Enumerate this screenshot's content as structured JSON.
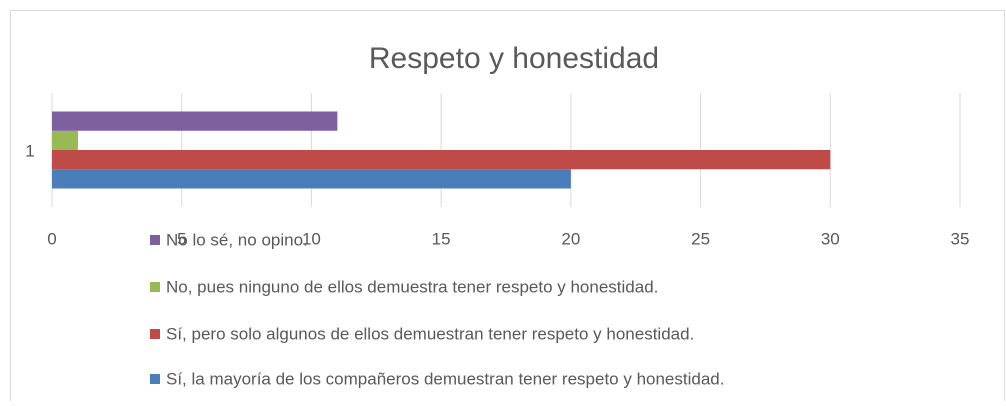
{
  "chart_data": {
    "type": "bar",
    "orientation": "horizontal",
    "title": "Respeto y honestidad",
    "categories": [
      "1"
    ],
    "series": [
      {
        "name": "Sí, la mayoría de los compañeros demuestran tener respeto y honestidad.",
        "color": "#4a7ebb",
        "values": [
          20
        ]
      },
      {
        "name": "Sí, pero solo algunos de ellos demuestran tener respeto y honestidad.",
        "color": "#be4b48",
        "values": [
          30
        ]
      },
      {
        "name": "No, pues ninguno de ellos demuestra tener respeto y honestidad.",
        "color": "#98b954",
        "values": [
          1
        ]
      },
      {
        "name": "No lo sé, no opino.",
        "color": "#7d60a0",
        "values": [
          11
        ]
      }
    ],
    "xlim": [
      0,
      35
    ],
    "xticks": [
      0,
      5,
      10,
      15,
      20,
      25,
      30,
      35
    ],
    "grid": true,
    "legend": "bottom"
  }
}
